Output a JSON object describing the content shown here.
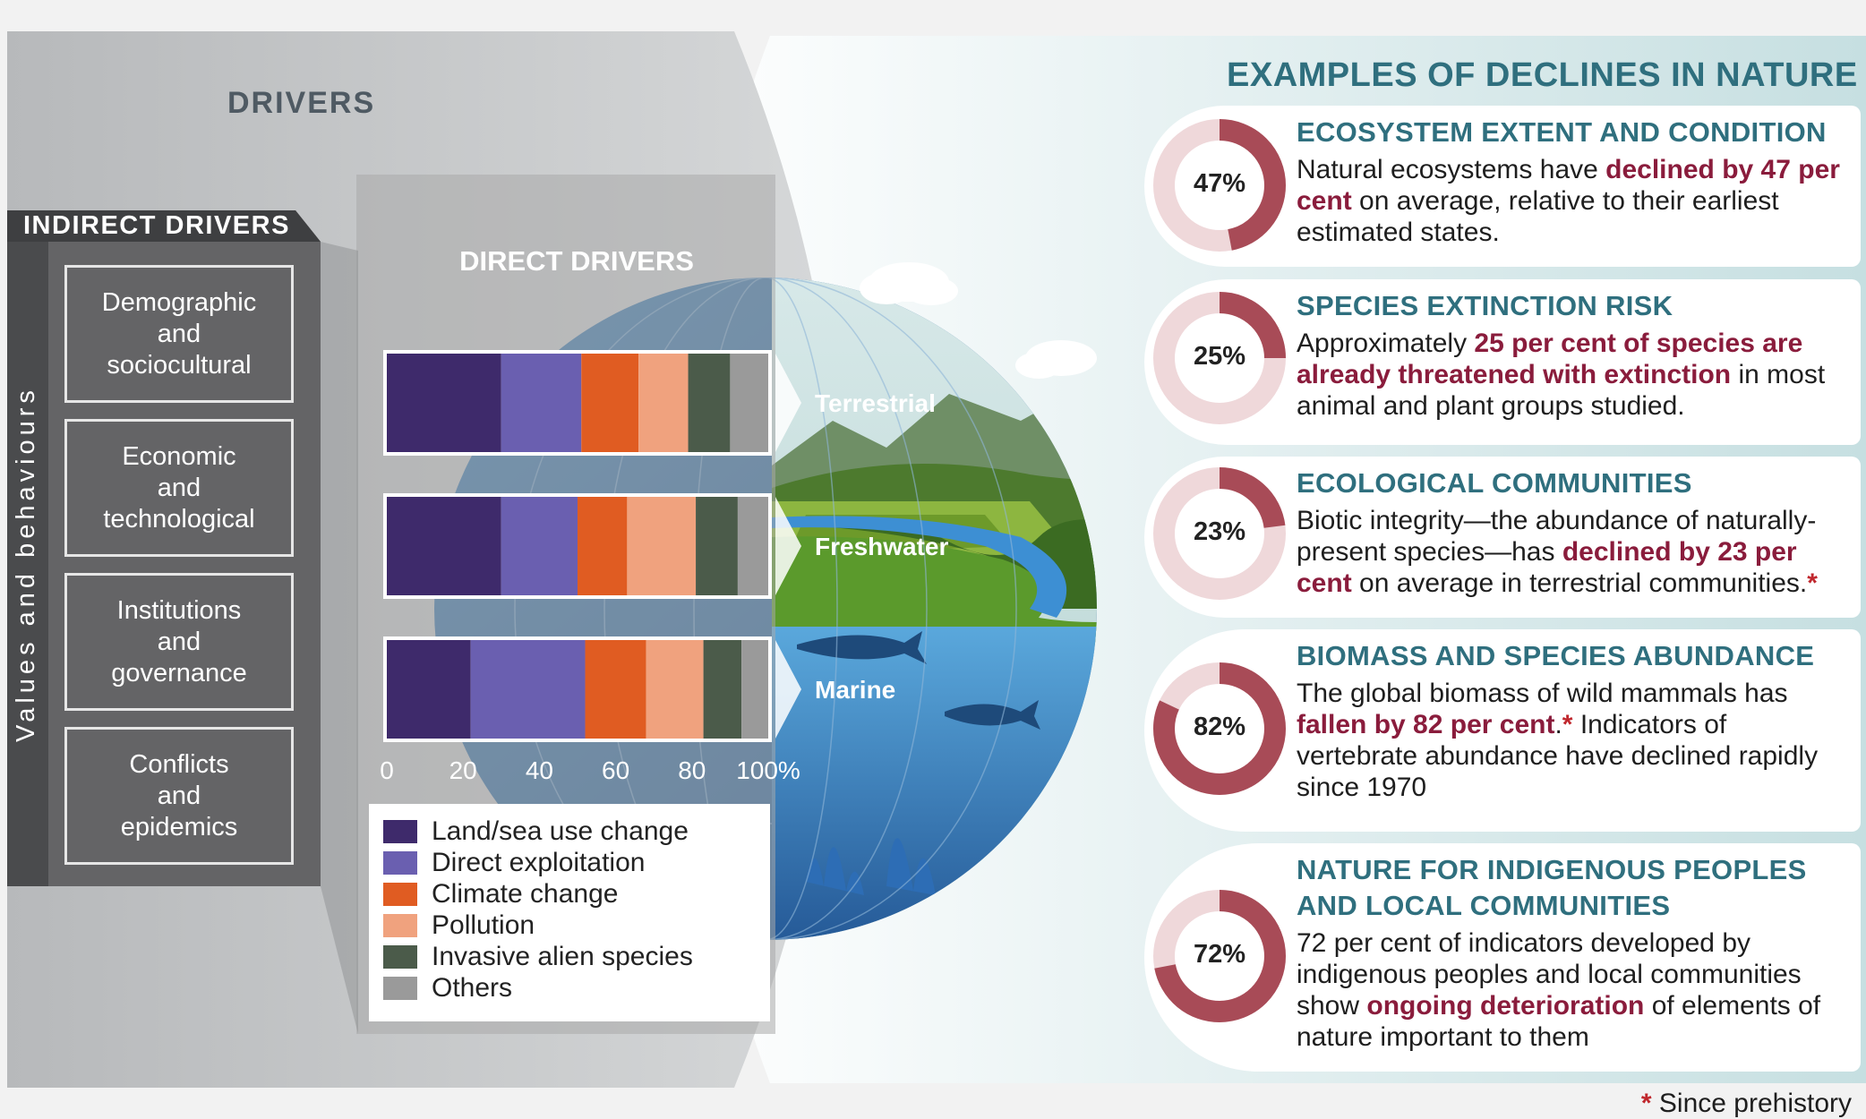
{
  "titles": {
    "drivers": "DRIVERS",
    "declines": "EXAMPLES OF DECLINES IN NATURE",
    "indirect": "INDIRECT DRIVERS",
    "direct": "DIRECT DRIVERS",
    "values_behaviours": "Values and behaviours"
  },
  "indirect_drivers": [
    {
      "lines": [
        "Demographic",
        "and",
        "sociocultural"
      ]
    },
    {
      "lines": [
        "Economic",
        "and",
        "technological"
      ]
    },
    {
      "lines": [
        "Institutions",
        "and",
        "governance"
      ]
    },
    {
      "lines": [
        "Conflicts",
        "and",
        "epidemics"
      ]
    }
  ],
  "realm_labels": [
    "Terrestrial",
    "Freshwater",
    "Marine"
  ],
  "colors": {
    "land_sea": "#3e2a6b",
    "exploitation": "#6a5fb0",
    "climate": "#e05c22",
    "pollution": "#f0a27e",
    "invasive": "#4b5b4a",
    "others": "#9a9a9a",
    "accent_red": "#a84b57",
    "ring_light": "#efd8da",
    "title_teal": "#2f6f7e"
  },
  "chart_data": {
    "type": "bar",
    "orientation": "horizontal",
    "stacked": true,
    "title": "DIRECT DRIVERS",
    "categories": [
      "Terrestrial",
      "Freshwater",
      "Marine"
    ],
    "x_ticks": [
      "0",
      "20",
      "40",
      "60",
      "80",
      "100%"
    ],
    "xlim": [
      0,
      100
    ],
    "series": [
      {
        "name": "Land/sea use change",
        "color": "#3e2a6b",
        "values": [
          30,
          30,
          22
        ]
      },
      {
        "name": "Direct exploitation",
        "color": "#6a5fb0",
        "values": [
          21,
          20,
          30
        ]
      },
      {
        "name": "Climate change",
        "color": "#e05c22",
        "values": [
          15,
          13,
          16
        ]
      },
      {
        "name": "Pollution",
        "color": "#f0a27e",
        "values": [
          13,
          18,
          15
        ]
      },
      {
        "name": "Invasive alien species",
        "color": "#4b5b4a",
        "values": [
          11,
          11,
          10
        ]
      },
      {
        "name": "Others",
        "color": "#9a9a9a",
        "values": [
          10,
          8,
          7
        ]
      }
    ],
    "legend_position": "bottom"
  },
  "declines": [
    {
      "title_lines": [
        "ECOSYSTEM EXTENT AND CONDITION"
      ],
      "percent_label": "47%",
      "percent": 47,
      "body_parts": [
        {
          "text": "Natural ecosystems have ",
          "bold": false
        },
        {
          "text": "declined by 47 per cent",
          "bold": true
        },
        {
          "text": " on average, relative to their earliest estimated states.",
          "bold": false
        }
      ]
    },
    {
      "title_lines": [
        "SPECIES EXTINCTION RISK"
      ],
      "percent_label": "25%",
      "percent": 25,
      "body_parts": [
        {
          "text": "Approximately ",
          "bold": false
        },
        {
          "text": "25 per cent of species are already threatened with extinction",
          "bold": true
        },
        {
          "text": " in most animal and plant groups studied.",
          "bold": false
        }
      ]
    },
    {
      "title_lines": [
        "ECOLOGICAL COMMUNITIES"
      ],
      "percent_label": "23%",
      "percent": 23,
      "body_parts": [
        {
          "text": "Biotic integrity—the abundance of naturally-present species—has ",
          "bold": false
        },
        {
          "text": "declined by 23 per cent",
          "bold": true
        },
        {
          "text": " on average in terrestrial communities.",
          "bold": false
        },
        {
          "text": "*",
          "bold": true
        }
      ]
    },
    {
      "title_lines": [
        "BIOMASS AND SPECIES ABUNDANCE"
      ],
      "percent_label": "82%",
      "percent": 82,
      "body_parts": [
        {
          "text": "The global biomass of wild mammals has ",
          "bold": false
        },
        {
          "text": "fallen by 82 per cent",
          "bold": true
        },
        {
          "text": ".",
          "bold": false
        },
        {
          "text": "*",
          "bold": true
        },
        {
          "text": " Indicators of vertebrate abundance have declined rapidly since 1970",
          "bold": false
        }
      ]
    },
    {
      "title_lines": [
        "NATURE FOR INDIGENOUS PEOPLES",
        "AND LOCAL COMMUNITIES"
      ],
      "percent_label": "72%",
      "percent": 72,
      "body_parts": [
        {
          "text": "72 per cent of indicators developed by indigenous peoples and local communities show ",
          "bold": false
        },
        {
          "text": "ongoing deterioration",
          "bold": true
        },
        {
          "text": " of elements of nature important to them",
          "bold": false
        }
      ]
    }
  ],
  "footnote": {
    "star": "*",
    "text": " Since prehistory"
  }
}
